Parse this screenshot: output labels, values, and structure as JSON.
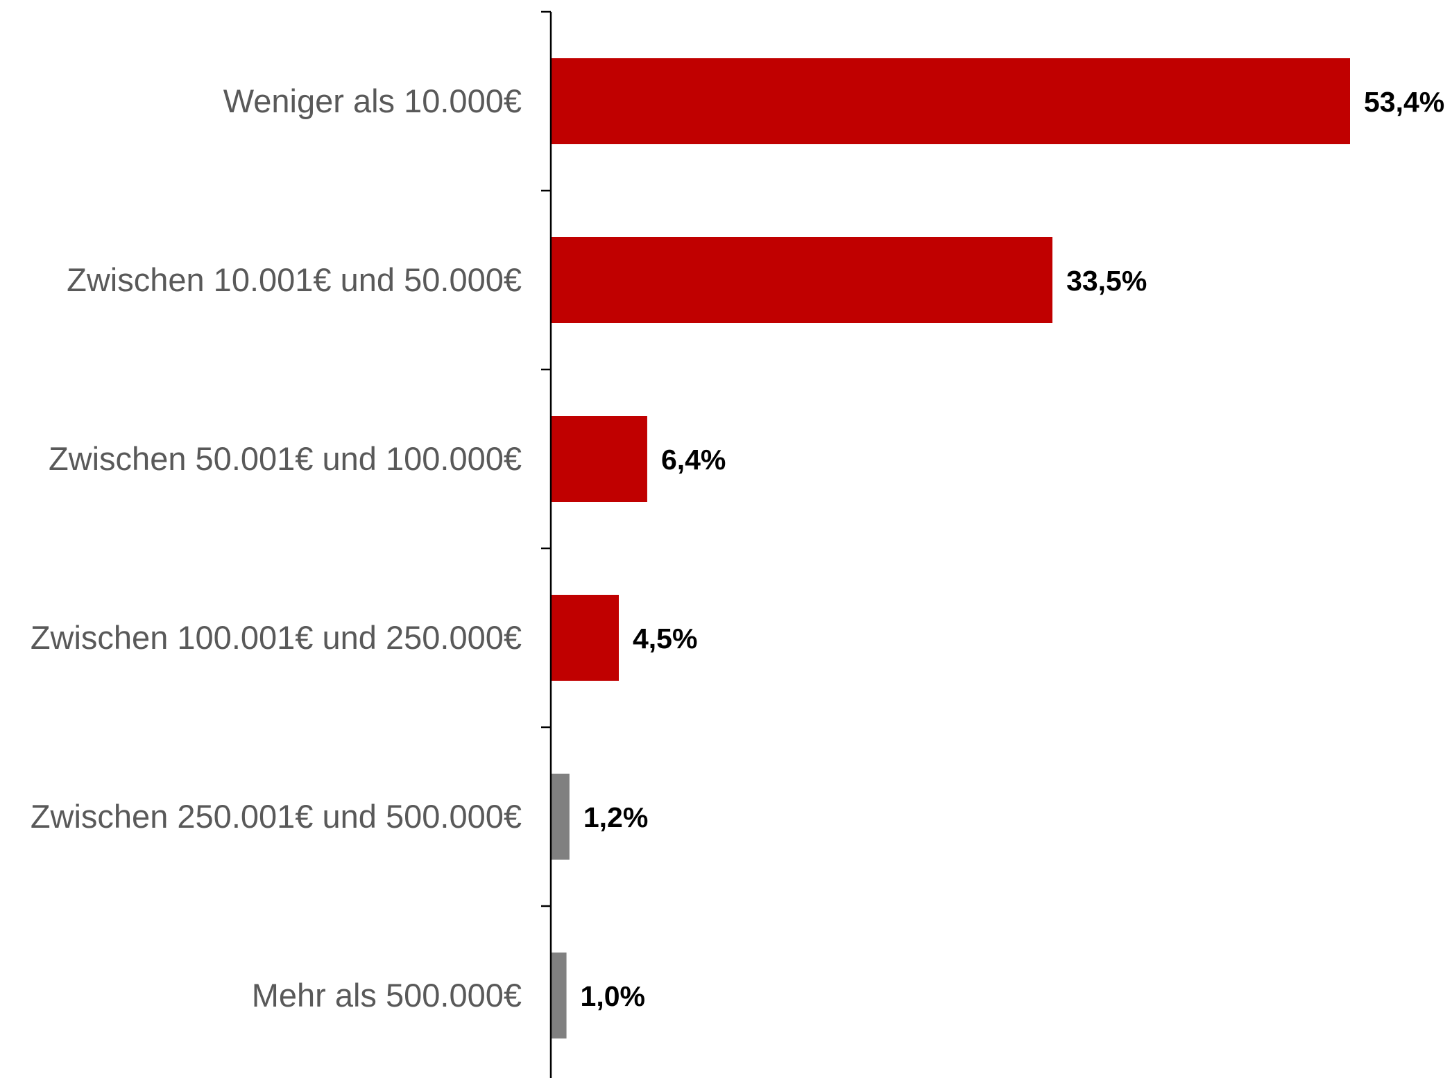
{
  "chart_data": {
    "type": "bar",
    "orientation": "horizontal",
    "title": "",
    "xlabel": "",
    "ylabel": "",
    "categories": [
      "Weniger als 10.000€",
      "Zwischen 10.001€ und 50.000€",
      "Zwischen 50.001€ und 100.000€",
      "Zwischen 100.001€ und 250.000€",
      "Zwischen 250.001€ und 500.000€",
      "Mehr als 500.000€"
    ],
    "values": [
      53.4,
      33.5,
      6.4,
      4.5,
      1.2,
      1.0
    ],
    "value_labels": [
      "53,4%",
      "33,5%",
      "6,4%",
      "4,5%",
      "1,2%",
      "1,0%"
    ],
    "bar_colors": [
      "#c00000",
      "#c00000",
      "#c00000",
      "#c00000",
      "#808080",
      "#808080"
    ],
    "xlim": [
      0,
      53.4
    ],
    "grid": false,
    "legend": "none",
    "colors": {
      "accent": "#c00000",
      "muted": "#808080",
      "category_text": "#595959",
      "value_text": "#000000",
      "axis": "#000000"
    }
  }
}
